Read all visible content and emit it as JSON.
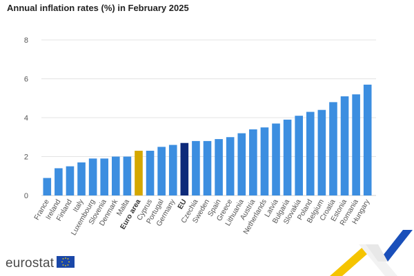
{
  "title": "Annual inflation rates (%) in February 2025",
  "logo_text": "eurostat",
  "colors": {
    "bar": "#3c8ee0",
    "euro_area": "#d4a700",
    "eu": "#0d2a7a",
    "grid": "#e3e3e3",
    "axis_text": "#555555"
  },
  "chart_data": {
    "type": "bar",
    "title": "Annual inflation rates (%) in February 2025",
    "categories": [
      "France",
      "Ireland",
      "Finland",
      "Italy",
      "Luxembourg",
      "Slovenia",
      "Denmark",
      "Malta",
      "Euro area",
      "Cyprus",
      "Portugal",
      "Germany",
      "EU",
      "Czechia",
      "Sweden",
      "Spain",
      "Greece",
      "Lithuania",
      "Austria",
      "Netherlands",
      "Latvia",
      "Bulgaria",
      "Slovakia",
      "Poland",
      "Belgium",
      "Croatia",
      "Estonia",
      "Romania",
      "Hungary"
    ],
    "values": [
      0.9,
      1.4,
      1.5,
      1.7,
      1.9,
      1.9,
      2.0,
      2.0,
      2.3,
      2.3,
      2.5,
      2.6,
      2.7,
      2.8,
      2.8,
      2.9,
      3.0,
      3.2,
      3.4,
      3.5,
      3.7,
      3.9,
      4.1,
      4.3,
      4.4,
      4.8,
      5.1,
      5.2,
      5.7
    ],
    "highlight": {
      "Euro area": "euro_area",
      "EU": "eu"
    },
    "bold_categories": [
      "Euro area",
      "EU"
    ],
    "ylim": [
      0,
      8
    ],
    "yticks": [
      0,
      2,
      4,
      6,
      8
    ],
    "grid": true,
    "xlabel": "",
    "ylabel": ""
  }
}
